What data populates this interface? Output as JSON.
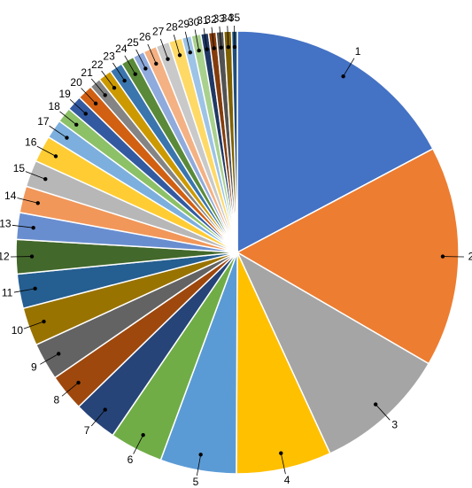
{
  "chart_data": {
    "type": "pie",
    "categories": [
      "1",
      "2",
      "3",
      "4",
      "5",
      "6",
      "7",
      "8",
      "9",
      "10",
      "11",
      "12",
      "13",
      "14",
      "15",
      "16",
      "17",
      "18",
      "19",
      "20",
      "21",
      "22",
      "23",
      "24",
      "25",
      "26",
      "27",
      "28",
      "29",
      "30",
      "31",
      "32",
      "33",
      "34",
      "35"
    ],
    "values": [
      62,
      58,
      35,
      25,
      20,
      14,
      11.5,
      9.7,
      9.8,
      10,
      9,
      9,
      7,
      7,
      7,
      7,
      5,
      4,
      4,
      4,
      3,
      3.5,
      3.5,
      3.5,
      3,
      3.5,
      3.5,
      3.5,
      2.5,
      2.5,
      2,
      2,
      2,
      2,
      1.5
    ],
    "colors": [
      "#4472c4",
      "#ed7d31",
      "#a5a5a5",
      "#ffc000",
      "#5b9bd5",
      "#70ad47",
      "#264478",
      "#9e480e",
      "#636363",
      "#997300",
      "#255e91",
      "#43682b",
      "#698ed0",
      "#f1975a",
      "#b7b7b7",
      "#ffcd33",
      "#7cafdd",
      "#8cc168",
      "#335aa1",
      "#d26012",
      "#848484",
      "#cc9a00",
      "#3a75ae",
      "#5a8a39",
      "#8faadc",
      "#f4b183",
      "#c9c9c9",
      "#ffd966",
      "#9dc3e6",
      "#a9d18e",
      "#203864",
      "#843c0c",
      "#525252",
      "#7f6000",
      "#1f4e79"
    ]
  }
}
